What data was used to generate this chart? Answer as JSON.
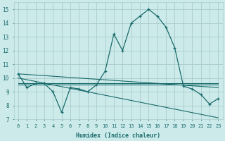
{
  "xlabel": "Humidex (Indice chaleur)",
  "bg_color": "#cceaea",
  "grid_color": "#aacccc",
  "line_color": "#1a6b6b",
  "xlim": [
    -0.5,
    23.5
  ],
  "ylim": [
    7,
    15.5
  ],
  "xticks": [
    0,
    1,
    2,
    3,
    4,
    5,
    6,
    7,
    8,
    9,
    10,
    11,
    12,
    13,
    14,
    15,
    16,
    17,
    18,
    19,
    20,
    21,
    22,
    23
  ],
  "yticks": [
    7,
    8,
    9,
    10,
    11,
    12,
    13,
    14,
    15
  ],
  "main_line": {
    "x": [
      0,
      1,
      2,
      3,
      4,
      5,
      6,
      7,
      8,
      9,
      10,
      11,
      12,
      13,
      14,
      15,
      16,
      17,
      18,
      19,
      20,
      21,
      22,
      23
    ],
    "y": [
      10.3,
      9.3,
      9.6,
      9.6,
      9.0,
      7.5,
      9.3,
      9.2,
      9.0,
      9.5,
      10.5,
      13.2,
      12.0,
      14.0,
      14.5,
      15.0,
      14.5,
      13.7,
      12.2,
      9.4,
      9.2,
      8.8,
      8.1,
      8.5
    ]
  },
  "line2": {
    "x": [
      0,
      23
    ],
    "y": [
      10.3,
      9.3
    ]
  },
  "line3": {
    "x": [
      0,
      23
    ],
    "y": [
      9.6,
      9.6
    ]
  },
  "line4": {
    "x": [
      0,
      23
    ],
    "y": [
      9.5,
      9.5
    ]
  },
  "diag_line": {
    "x": [
      0,
      23
    ],
    "y": [
      10.0,
      7.1
    ]
  }
}
